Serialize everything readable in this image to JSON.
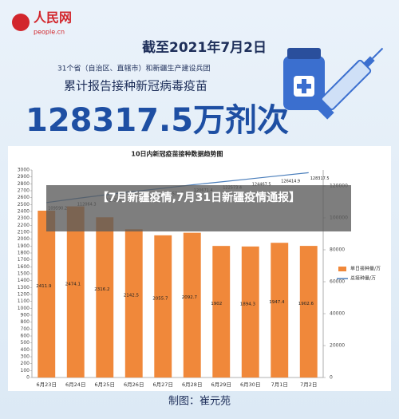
{
  "header": {
    "logo": "人民网",
    "site": "people.cn",
    "date_title": "截至2021年7月2日",
    "subtitle": "31个省（自治区、直辖市）和新疆生产建设兵团",
    "headline": "累计报告接种新冠病毒疫苗",
    "total": "128317.5万剂次"
  },
  "overlay": "【7月新疆疫情,7月31日新疆疫情通报】",
  "footer": "制图：崔元苑",
  "chart_data": {
    "type": "bar",
    "title": "10日内新冠疫苗接种数据趋势图",
    "categories": [
      "6月23日",
      "6月24日",
      "6月25日",
      "6月26日",
      "6月27日",
      "6月28日",
      "6月29日",
      "6月30日",
      "7月1日",
      "7月2日"
    ],
    "series": [
      {
        "name": "单日接种量/万",
        "color": "#f0883a",
        "values": [
          2411.9,
          2474.1,
          2316.2,
          2142.5,
          2055.7,
          2092.7,
          1902,
          1894.3,
          1947.4,
          1902.6
        ]
      },
      {
        "name": "总接种量/万",
        "color": "#4a7ebb",
        "axis": "y2",
        "values": [
          109590.2,
          112064.3,
          114380.5,
          116523,
          118578.7,
          120671.4,
          122573.4,
          124467.5,
          126414.9,
          128317.5
        ]
      }
    ],
    "ylim": [
      0,
      3000
    ],
    "yticks": [
      0,
      100,
      200,
      300,
      400,
      500,
      600,
      700,
      800,
      900,
      1000,
      1100,
      1200,
      1300,
      1400,
      1500,
      1600,
      1700,
      1800,
      1900,
      2000,
      2100,
      2200,
      2300,
      2400,
      2500,
      2600,
      2700,
      2800,
      2900,
      3000
    ],
    "y2lim": [
      0,
      130000
    ],
    "y2ticks": [
      0,
      20000,
      40000,
      60000,
      80000,
      100000,
      120000
    ],
    "legend": "right"
  }
}
